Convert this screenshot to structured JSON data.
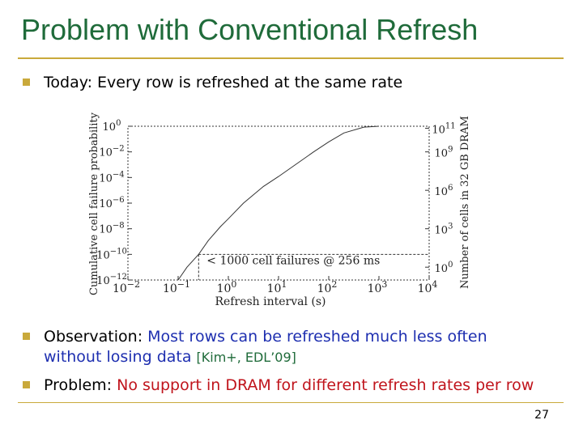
{
  "slide": {
    "title": "Problem with Conventional Refresh",
    "page_number": "27",
    "bullets": [
      {
        "parts": [
          {
            "text": "Today: Every row is refreshed at the same rate",
            "style": "plain"
          }
        ]
      },
      {
        "parts": [
          {
            "text": "Observation: ",
            "style": "plain"
          },
          {
            "text": "Most rows can be refreshed much less often",
            "style": "blue"
          }
        ]
      },
      {
        "parts": [
          {
            "text": "without losing data ",
            "style": "blue"
          },
          {
            "text": "[Kim+, EDL’09]",
            "style": "green"
          }
        ]
      },
      {
        "parts": [
          {
            "text": "Problem: ",
            "style": "plain"
          },
          {
            "text": "No support in DRAM for different refresh rates per row",
            "style": "red"
          }
        ]
      }
    ]
  },
  "chart_data": {
    "type": "line",
    "xlabel": "Refresh interval (s)",
    "ylabel": "Cumulative cell failure probability",
    "y2label": "Number of cells in 32 GB DRAM",
    "xscale": "log",
    "yscale": "log",
    "xlim": [
      0.01,
      10000
    ],
    "ylim": [
      1e-12,
      1
    ],
    "x_ticks": [
      {
        "base": "10",
        "exp": "−2"
      },
      {
        "base": "10",
        "exp": "−1"
      },
      {
        "base": "10",
        "exp": "0"
      },
      {
        "base": "10",
        "exp": "1"
      },
      {
        "base": "10",
        "exp": "2"
      },
      {
        "base": "10",
        "exp": "3"
      },
      {
        "base": "10",
        "exp": "4"
      }
    ],
    "y_ticks": [
      {
        "base": "10",
        "exp": "0"
      },
      {
        "base": "10",
        "exp": "−2"
      },
      {
        "base": "10",
        "exp": "−4"
      },
      {
        "base": "10",
        "exp": "−6"
      },
      {
        "base": "10",
        "exp": "−8"
      },
      {
        "base": "10",
        "exp": "−10"
      },
      {
        "base": "10",
        "exp": "−12"
      }
    ],
    "y2_ticks": [
      {
        "base": "10",
        "exp": "11"
      },
      {
        "base": "10",
        "exp": "9"
      },
      {
        "base": "10",
        "exp": "6"
      },
      {
        "base": "10",
        "exp": "3"
      },
      {
        "base": "10",
        "exp": "0"
      }
    ],
    "series": [
      {
        "x": [
          0.1,
          0.15,
          0.256,
          0.4,
          0.7,
          1,
          2,
          5,
          10,
          20,
          50,
          100,
          200,
          500,
          1000
        ],
        "y": [
          1e-12,
          1e-11,
          1e-10,
          1.2e-09,
          1.5e-08,
          6e-08,
          1e-06,
          2e-05,
          0.00012,
          0.0008,
          0.01,
          0.06,
          0.3,
          0.85,
          1
        ]
      }
    ],
    "annotation": {
      "text": "< 1000 cell failures @ 256 ms",
      "x": 0.256,
      "y": 1e-10
    },
    "grid": false
  }
}
